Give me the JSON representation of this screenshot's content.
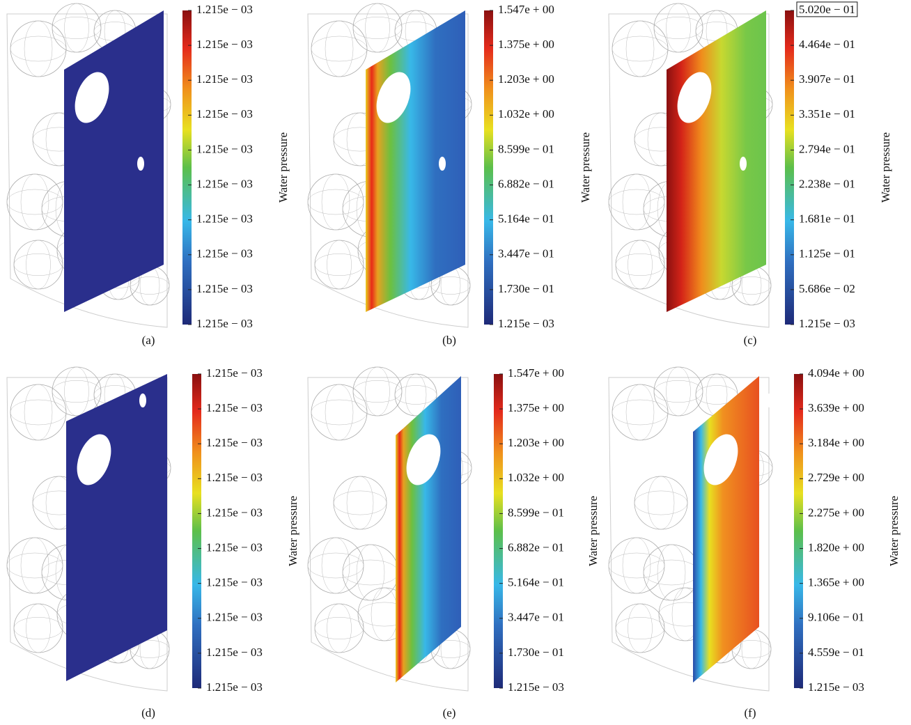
{
  "panels": [
    {
      "label": "(a)",
      "colorbar": {
        "title": "Water pressure",
        "ticks": [
          "1.215e − 03",
          "1.215e − 03",
          "1.215e − 03",
          "1.215e − 03",
          "1.215e − 03",
          "1.215e − 03",
          "1.215e − 03",
          "1.215e − 03",
          "1.215e − 03",
          "1.215e − 03"
        ]
      }
    },
    {
      "label": "(b)",
      "colorbar": {
        "title": "Water pressure",
        "ticks": [
          "1.547e + 00",
          "1.375e + 00",
          "1.203e + 00",
          "1.032e + 00",
          "8.599e − 01",
          "6.882e − 01",
          "5.164e − 01",
          "3.447e − 01",
          "1.730e − 01",
          "1.215e − 03"
        ]
      }
    },
    {
      "label": "(c)",
      "colorbar": {
        "title": "Water pressure",
        "ticks": [
          "5.020e − 01",
          "4.464e − 01",
          "3.907e − 01",
          "3.351e − 01",
          "2.794e − 01",
          "2.238e − 01",
          "1.681e − 01",
          "1.125e − 01",
          "5.686e − 02",
          "1.215e − 03"
        ]
      }
    },
    {
      "label": "(d)",
      "colorbar": {
        "title": "Water pressure",
        "ticks": [
          "1.215e − 03",
          "1.215e − 03",
          "1.215e − 03",
          "1.215e − 03",
          "1.215e − 03",
          "1.215e − 03",
          "1.215e − 03",
          "1.215e − 03",
          "1.215e − 03",
          "1.215e − 03"
        ]
      }
    },
    {
      "label": "(e)",
      "colorbar": {
        "title": "Water pressure",
        "ticks": [
          "1.547e + 00",
          "1.375e + 00",
          "1.203e + 00",
          "1.032e + 00",
          "8.599e − 01",
          "6.882e − 01",
          "5.164e − 01",
          "3.447e − 01",
          "1.730e − 01",
          "1.215e − 03"
        ]
      }
    },
    {
      "label": "(f)",
      "colorbar": {
        "title": "Water pressure",
        "ticks": [
          "4.094e + 00",
          "3.639e + 00",
          "3.184e + 00",
          "2.729e + 00",
          "2.275e + 00",
          "1.820e + 00",
          "1.365e + 00",
          "9.106e − 01",
          "4.559e − 01",
          "1.215e − 03"
        ]
      }
    }
  ]
}
